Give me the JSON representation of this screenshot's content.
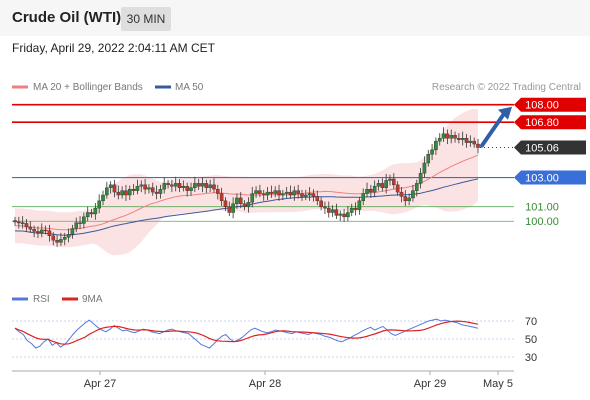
{
  "header": {
    "title": "Crude Oil (WTI)",
    "timeframe": "30 MIN"
  },
  "datetime": "Friday, April 29, 2022 2:04:11 AM CET",
  "legend": {
    "ma20_label": "MA 20 + Bollinger Bands",
    "ma50_label": "MA 50",
    "credit": "Research © 2022 Trading Central",
    "rsi_label": "RSI",
    "rsi_ma_label": "9MA"
  },
  "colors": {
    "resistance": "#e00000",
    "support_major": "#3a6fd8",
    "support_minor": "#5aaa5a",
    "current": "#333333",
    "up_candle": "#2e8b3a",
    "down_candle": "#c0392b",
    "ma20": "#f08080",
    "ma50": "#3a5a9a",
    "bollinger_fill": "#fbd9d9",
    "arrow": "#2f5fa7",
    "rsi": "#5577dd",
    "rsi_ma": "#dd2222"
  },
  "chart_data": {
    "type": "candlestick",
    "title": "Crude Oil (WTI)",
    "timeframe": "30 MIN",
    "ylim": [
      97.2,
      108.6
    ],
    "x_ticks": [
      "Apr 27",
      "Apr 28",
      "Apr 29",
      "May 5"
    ],
    "levels": [
      {
        "value": 108.0,
        "label": "108.00",
        "kind": "resistance"
      },
      {
        "value": 106.8,
        "label": "106.80",
        "kind": "resistance"
      },
      {
        "value": 105.06,
        "label": "105.06",
        "kind": "current"
      },
      {
        "value": 103.0,
        "label": "103.00",
        "kind": "support_major"
      },
      {
        "value": 101.0,
        "label": "101.00",
        "kind": "support_minor"
      },
      {
        "value": 100.0,
        "label": "100.00",
        "kind": "support_minor"
      }
    ],
    "close_prices": [
      99.95,
      99.9,
      99.85,
      99.6,
      99.45,
      99.3,
      99.2,
      99.4,
      99.35,
      99.0,
      98.7,
      98.55,
      98.75,
      98.9,
      99.1,
      99.5,
      99.9,
      99.85,
      100.3,
      100.6,
      100.5,
      100.9,
      101.4,
      101.8,
      102.3,
      102.5,
      102.0,
      101.8,
      102.1,
      101.8,
      102.2,
      102.1,
      102.4,
      102.5,
      102.2,
      102.3,
      102.0,
      101.9,
      102.2,
      102.6,
      102.5,
      102.4,
      102.6,
      102.3,
      102.4,
      102.1,
      102.3,
      102.6,
      102.4,
      102.6,
      102.3,
      102.5,
      102.2,
      101.9,
      101.4,
      101.0,
      100.6,
      101.2,
      101.6,
      101.2,
      101.0,
      101.3,
      101.9,
      102.1,
      101.9,
      101.8,
      102.0,
      101.9,
      102.1,
      101.8,
      101.9,
      102.0,
      101.8,
      102.1,
      101.9,
      101.7,
      101.8,
      101.9,
      101.7,
      101.4,
      101.0,
      100.9,
      100.6,
      100.8,
      100.4,
      100.5,
      100.3,
      100.6,
      100.9,
      100.8,
      101.4,
      101.9,
      102.2,
      102.0,
      102.4,
      102.6,
      102.3,
      102.8,
      102.9,
      102.5,
      102.0,
      101.7,
      101.4,
      101.6,
      102.1,
      102.6,
      103.3,
      104.0,
      104.6,
      104.9,
      105.5,
      105.7,
      106.0,
      105.7,
      105.9,
      105.7,
      105.6,
      105.7,
      105.4,
      105.5,
      105.3,
      105.06
    ],
    "ma20_start": 99.2,
    "ma20_end": 105.0,
    "ma50_start": 98.2,
    "ma50_end": 103.4,
    "rsi": {
      "ylim": [
        20,
        80
      ],
      "y_ticks": [
        70,
        50,
        30
      ],
      "values": [
        62,
        58,
        55,
        48,
        45,
        40,
        42,
        47,
        50,
        43,
        46,
        41,
        44,
        49,
        55,
        60,
        64,
        68,
        71,
        67,
        63,
        60,
        58,
        61,
        65,
        62,
        59,
        60,
        58,
        57,
        59,
        61,
        60,
        58,
        57,
        56,
        58,
        60,
        61,
        59,
        58,
        57,
        56,
        52,
        48,
        44,
        42,
        40,
        44,
        49,
        53,
        55,
        50,
        47,
        49,
        52,
        56,
        60,
        62,
        60,
        58,
        57,
        58,
        60,
        59,
        58,
        57,
        56,
        58,
        57,
        56,
        55,
        57,
        56,
        55,
        53,
        52,
        50,
        48,
        47,
        49,
        51,
        54,
        56,
        59,
        61,
        63,
        60,
        62,
        64,
        60,
        56,
        54,
        56,
        58,
        60,
        62,
        64,
        66,
        68,
        70,
        71,
        72,
        70,
        71,
        70,
        69,
        68,
        66,
        65,
        64,
        63,
        62
      ]
    }
  }
}
